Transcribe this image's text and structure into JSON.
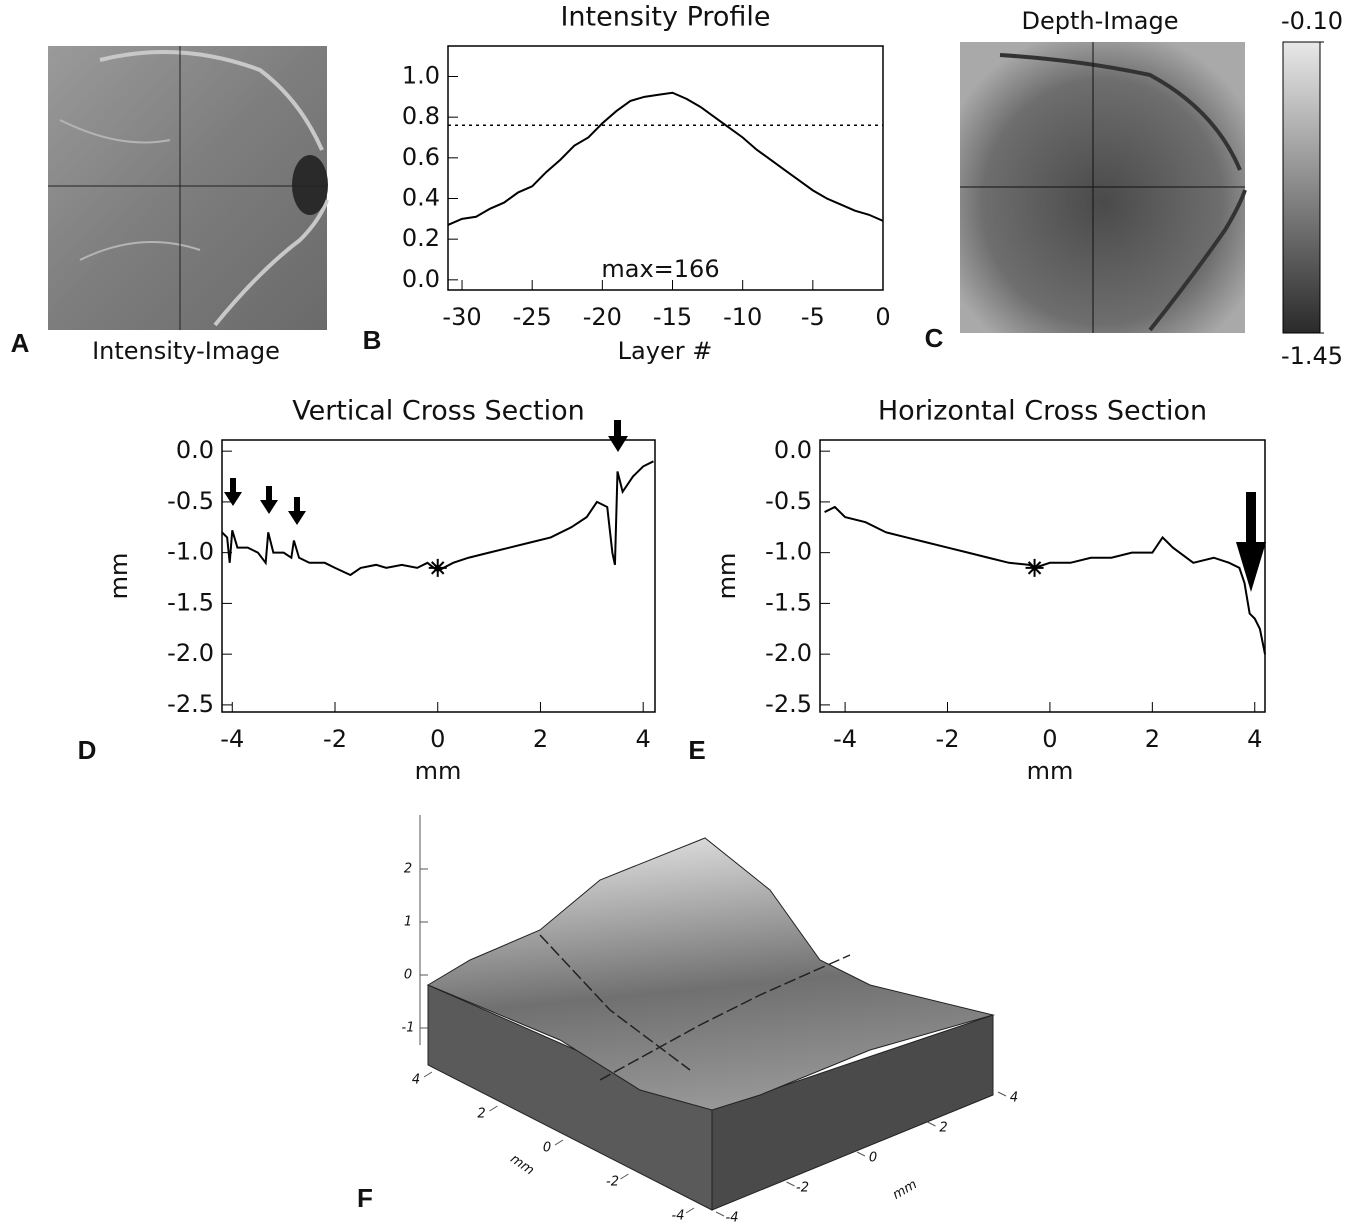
{
  "panels": [
    {
      "label": "A",
      "caption": "Intensity-Image"
    },
    {
      "label": "B"
    },
    {
      "label": "C",
      "caption": "Depth-Image"
    },
    {
      "label": "D"
    },
    {
      "label": "E"
    },
    {
      "label": "F"
    }
  ],
  "chart_data": [
    {
      "type": "line",
      "title": "Intensity Profile",
      "xlabel": "Layer #",
      "annotation": "max=166",
      "x": [
        -31,
        -30,
        -29,
        -28,
        -27,
        -26,
        -25,
        -24,
        -23,
        -22,
        -21,
        -20,
        -19,
        -18,
        -17,
        -16,
        -15,
        -14,
        -13,
        -12,
        -11,
        -10,
        -9,
        -8,
        -7,
        -6,
        -5,
        -4,
        -3,
        -2,
        -1,
        0
      ],
      "values": [
        0.27,
        0.3,
        0.31,
        0.35,
        0.38,
        0.43,
        0.46,
        0.53,
        0.59,
        0.66,
        0.7,
        0.77,
        0.83,
        0.88,
        0.9,
        0.91,
        0.92,
        0.89,
        0.85,
        0.8,
        0.75,
        0.7,
        0.64,
        0.59,
        0.54,
        0.49,
        0.44,
        0.4,
        0.37,
        0.34,
        0.32,
        0.29
      ],
      "hline": 0.76,
      "color": "#000000",
      "xlim": [
        -31,
        0
      ],
      "ylim": [
        -0.05,
        1.15
      ],
      "xticks": [
        -30,
        -25,
        -20,
        -15,
        -10,
        -5,
        0
      ],
      "yticks": [
        {
          "value": 0,
          "label": "0.0"
        },
        0.2,
        0.4,
        0.6,
        0.8,
        {
          "value": 1,
          "label": "1.0"
        }
      ]
    },
    {
      "type": "colorbar",
      "ylim": [
        -1.45,
        -0.1
      ],
      "yticks": [
        {
          "value": -0.1,
          "label": "-0.10"
        },
        -1.45
      ]
    },
    {
      "type": "line",
      "title": "Vertical Cross Section",
      "xlabel": "mm",
      "ylabel": "mm",
      "color": "#000000",
      "x": [
        -4.2,
        -4.1,
        -4.05,
        -4.0,
        -3.9,
        -3.7,
        -3.5,
        -3.35,
        -3.3,
        -3.2,
        -3.0,
        -2.85,
        -2.8,
        -2.7,
        -2.5,
        -2.2,
        -2.0,
        -1.7,
        -1.5,
        -1.2,
        -1.0,
        -0.7,
        -0.4,
        -0.2,
        0,
        0.3,
        0.6,
        1.0,
        1.4,
        1.8,
        2.2,
        2.6,
        2.9,
        3.1,
        3.3,
        3.4,
        3.45,
        3.5,
        3.6,
        3.8,
        4.0,
        4.2
      ],
      "values": [
        -0.8,
        -0.85,
        -1.1,
        -0.78,
        -0.95,
        -0.95,
        -1.0,
        -1.1,
        -0.8,
        -1.0,
        -1.0,
        -1.05,
        -0.88,
        -1.05,
        -1.1,
        -1.1,
        -1.15,
        -1.22,
        -1.15,
        -1.12,
        -1.15,
        -1.12,
        -1.15,
        -1.1,
        -1.18,
        -1.1,
        -1.05,
        -1.0,
        -0.95,
        -0.9,
        -0.85,
        -0.75,
        -0.65,
        -0.5,
        -0.55,
        -1.0,
        -1.12,
        -0.2,
        -0.4,
        -0.25,
        -0.15,
        -0.1
      ],
      "marker": [
        0,
        -1.15
      ],
      "xlim": [
        -4.2,
        4.23
      ],
      "ylim": [
        -2.57,
        0.11
      ],
      "xticks": [
        -4,
        -2,
        0,
        2,
        4
      ],
      "yticks": [
        {
          "value": 0,
          "label": "0.0"
        },
        -0.5,
        {
          "value": -1,
          "label": "-1.0"
        },
        -1.5,
        {
          "value": -2,
          "label": "-2.0"
        },
        -2.5
      ]
    },
    {
      "type": "line",
      "title": "Horizontal Cross Section",
      "xlabel": "mm",
      "ylabel": "mm",
      "color": "#000000",
      "x": [
        -4.4,
        -4.2,
        -4.0,
        -3.6,
        -3.2,
        -2.8,
        -2.4,
        -2.0,
        -1.6,
        -1.2,
        -0.8,
        -0.4,
        -0.3,
        0,
        0.4,
        0.8,
        1.2,
        1.6,
        2.0,
        2.2,
        2.4,
        2.8,
        3.2,
        3.5,
        3.7,
        3.8,
        3.9,
        4.0,
        4.1,
        4.2
      ],
      "values": [
        -0.6,
        -0.55,
        -0.65,
        -0.7,
        -0.8,
        -0.85,
        -0.9,
        -0.95,
        -1.0,
        -1.05,
        -1.1,
        -1.12,
        -1.15,
        -1.1,
        -1.1,
        -1.05,
        -1.05,
        -1.0,
        -1.0,
        -0.85,
        -0.95,
        -1.1,
        -1.05,
        -1.1,
        -1.15,
        -1.3,
        -1.6,
        -1.65,
        -1.75,
        -2.0
      ],
      "marker": [
        -0.3,
        -1.15
      ],
      "xlim": [
        -4.49,
        4.2
      ],
      "ylim": [
        -2.57,
        0.11
      ],
      "xticks": [
        -4,
        -2,
        0,
        2,
        4
      ],
      "yticks": [
        {
          "value": 0,
          "label": "0.0"
        },
        -0.5,
        {
          "value": -1,
          "label": "-1.0"
        },
        -1.5,
        {
          "value": -2,
          "label": "-2.0"
        },
        -2.5
      ]
    },
    {
      "type": "surface",
      "xlabel": "mm",
      "ylabel": "mm",
      "zticks": [
        2,
        1,
        0,
        -1
      ],
      "xticks": [
        4,
        2,
        0,
        -2,
        -4
      ],
      "yticks": [
        -4,
        -2,
        0,
        2,
        4
      ]
    }
  ]
}
